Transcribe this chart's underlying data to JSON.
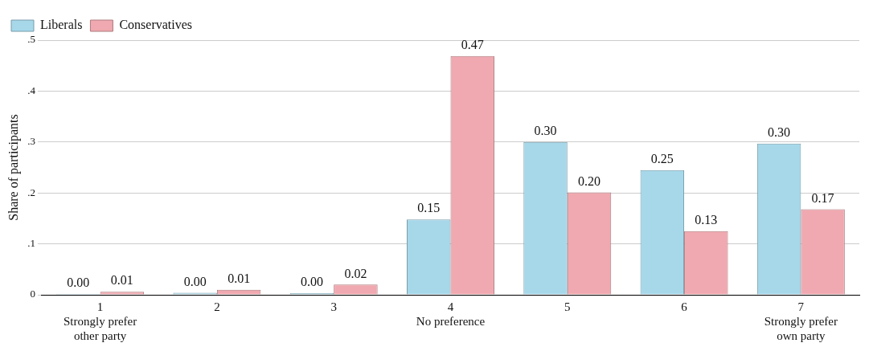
{
  "chart_data": {
    "type": "bar",
    "ylabel": "Share of participants",
    "categories": [
      "1\nStrongly prefer\nother party",
      "2",
      "3",
      "4\nNo preference",
      "5",
      "6",
      "7\nStrongly prefer\nown party"
    ],
    "series": [
      {
        "name": "Liberals",
        "color": "#a6d8ea",
        "values": [
          0.002,
          0.004,
          0.003,
          0.148,
          0.3,
          0.245,
          0.297
        ],
        "value_labels": [
          "0.00",
          "0.00",
          "0.00",
          "0.15",
          "0.30",
          "0.25",
          "0.30"
        ]
      },
      {
        "name": "Conservatives",
        "color": "#f0a9b0",
        "values": [
          0.006,
          0.01,
          0.02,
          0.469,
          0.201,
          0.125,
          0.168
        ],
        "value_labels": [
          "0.01",
          "0.01",
          "0.02",
          "0.47",
          "0.20",
          "0.13",
          "0.17"
        ]
      }
    ],
    "ylim": [
      0,
      0.5
    ],
    "yticks": [
      {
        "value": 0,
        "label": "0"
      },
      {
        "value": 0.1,
        "label": ".1"
      },
      {
        "value": 0.2,
        "label": ".2"
      },
      {
        "value": 0.3,
        "label": ".3"
      },
      {
        "value": 0.4,
        "label": ".4"
      },
      {
        "value": 0.5,
        "label": ".5"
      }
    ],
    "grid": "y",
    "legend": "top left"
  }
}
